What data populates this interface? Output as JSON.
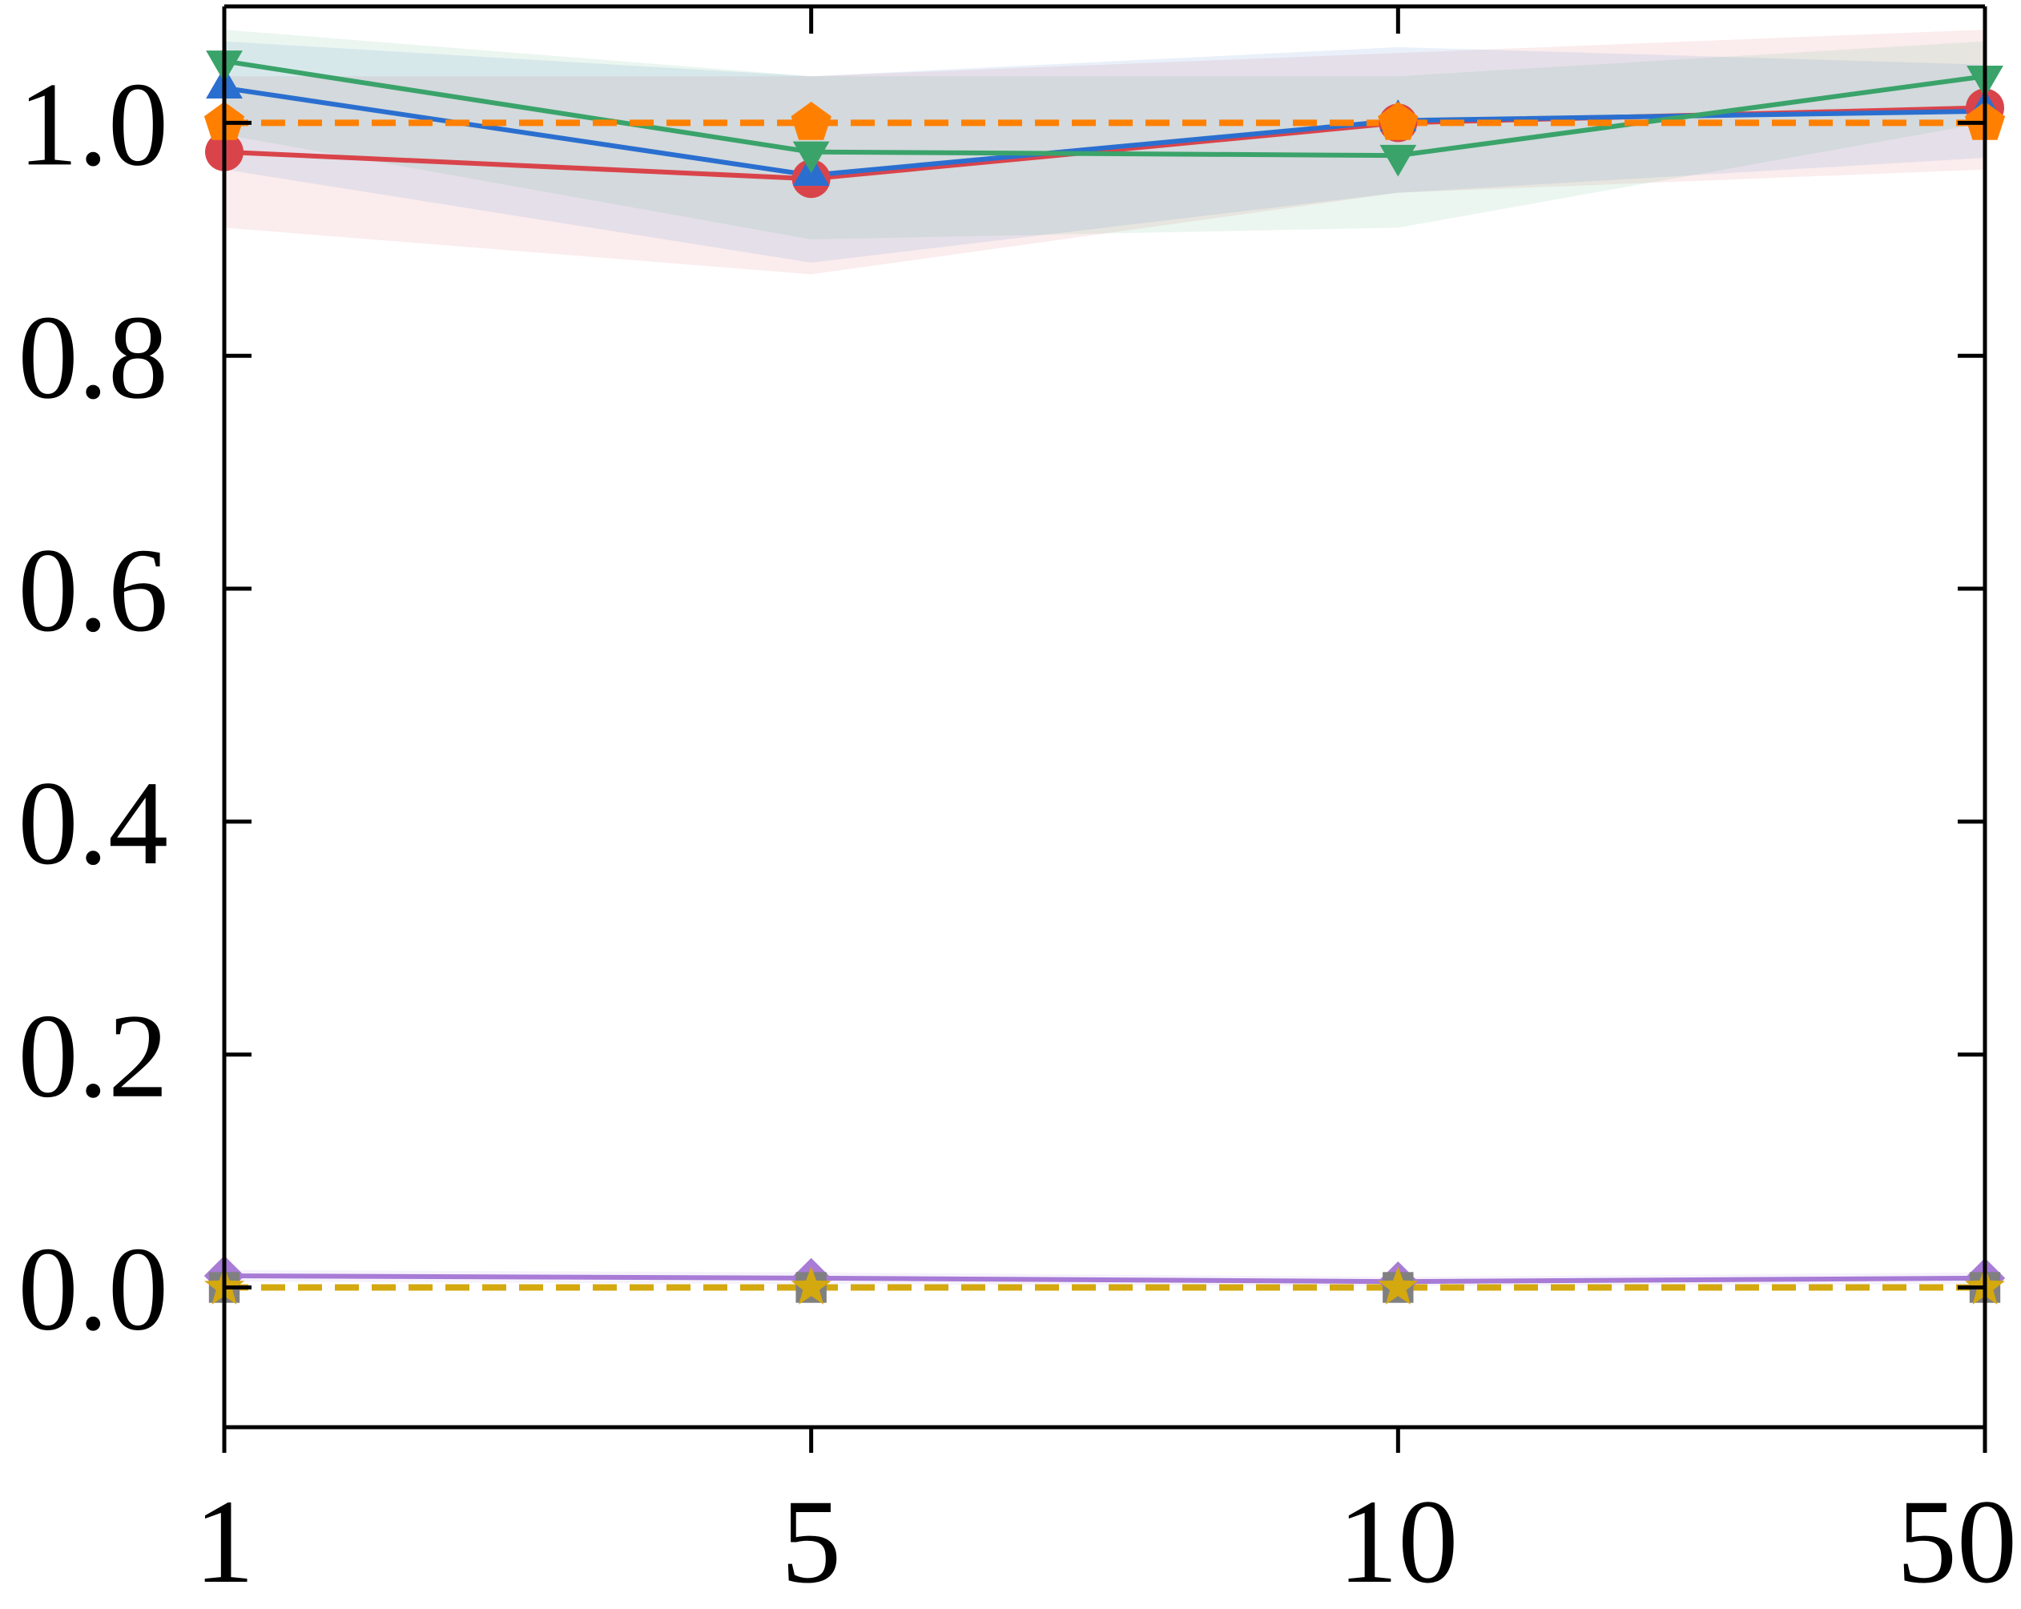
{
  "chart_data": {
    "type": "line",
    "title": "",
    "xlabel": "",
    "ylabel": "",
    "x": [
      "1",
      "5",
      "10",
      "50"
    ],
    "ylim": [
      -0.12,
      1.1
    ],
    "yticks": [
      0.0,
      0.2,
      0.4,
      0.6,
      0.8,
      1.0
    ],
    "ytick_labels": [
      "0.0",
      "0.2",
      "0.4",
      "0.6",
      "0.8",
      "1.0"
    ],
    "grid": false,
    "legend": "none",
    "series": [
      {
        "color": "#d9444b",
        "marker": "circle",
        "dash": false,
        "values": [
          0.975,
          0.952,
          1.0,
          1.013
        ],
        "band_lower": [
          0.91,
          0.87,
          0.94,
          0.96
        ],
        "band_upper": [
          1.04,
          1.04,
          1.06,
          1.08
        ]
      },
      {
        "color": "#2a6fd0",
        "marker": "triangle-up",
        "dash": false,
        "values": [
          1.03,
          0.955,
          1.002,
          1.01
        ],
        "band_lower": [
          0.96,
          0.88,
          0.94,
          0.97
        ],
        "band_upper": [
          1.07,
          1.04,
          1.065,
          1.05
        ]
      },
      {
        "color": "#3aa36a",
        "marker": "triangle-down",
        "dash": false,
        "values": [
          1.053,
          0.975,
          0.972,
          1.04
        ],
        "band_lower": [
          0.99,
          0.9,
          0.91,
          1.0
        ],
        "band_upper": [
          1.08,
          1.04,
          1.04,
          1.07
        ]
      },
      {
        "color": "#a77bd6",
        "marker": "diamond",
        "dash": false,
        "values": [
          0.01,
          0.008,
          0.005,
          0.008
        ],
        "band_lower": [
          0.005,
          0.003,
          0.001,
          0.003
        ],
        "band_upper": [
          0.015,
          0.013,
          0.009,
          0.013
        ]
      },
      {
        "color": "#ff8000",
        "marker": "pentagon",
        "dash": true,
        "values": [
          1.0,
          1.0,
          1.0,
          1.0
        ]
      },
      {
        "color": "#808080",
        "marker": "square",
        "dash": true,
        "values": [
          0.0,
          0.0,
          0.0,
          0.0
        ]
      },
      {
        "color": "#d4a80f",
        "marker": "star",
        "dash": true,
        "values": [
          0.0,
          0.0,
          0.0,
          0.0
        ]
      }
    ]
  }
}
